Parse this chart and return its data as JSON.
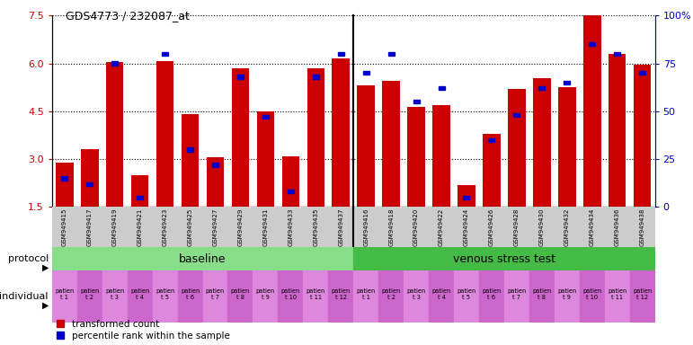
{
  "title": "GDS4773 / 232087_at",
  "gsm_labels": [
    "GSM949415",
    "GSM949417",
    "GSM949419",
    "GSM949421",
    "GSM949423",
    "GSM949425",
    "GSM949427",
    "GSM949429",
    "GSM949431",
    "GSM949433",
    "GSM949435",
    "GSM949437",
    "GSM949416",
    "GSM949418",
    "GSM949420",
    "GSM949422",
    "GSM949424",
    "GSM949426",
    "GSM949428",
    "GSM949430",
    "GSM949432",
    "GSM949434",
    "GSM949436",
    "GSM949438"
  ],
  "red_values": [
    2.9,
    3.3,
    6.05,
    2.5,
    6.08,
    4.4,
    3.05,
    5.85,
    4.5,
    3.1,
    5.85,
    6.15,
    5.3,
    5.45,
    4.65,
    4.7,
    2.2,
    3.8,
    5.2,
    5.55,
    5.25,
    7.5,
    6.3,
    5.95
  ],
  "blue_pct": [
    15,
    12,
    75,
    5,
    80,
    30,
    22,
    68,
    47,
    8,
    68,
    80,
    70,
    80,
    55,
    62,
    5,
    35,
    48,
    62,
    65,
    85,
    80,
    70
  ],
  "ymin": 1.5,
  "ymax": 7.5,
  "yticks_red": [
    1.5,
    3.0,
    4.5,
    6.0,
    7.5
  ],
  "yticks_blue": [
    0,
    25,
    50,
    75,
    100
  ],
  "n_baseline": 12,
  "n_venous": 12,
  "baseline_label": "baseline",
  "venous_label": "venous stress test",
  "protocol_label": "protocol",
  "individual_label": "individual",
  "individual_labels": [
    "patien\nt 1",
    "patien\nt 2",
    "patien\nt 3",
    "patien\nt 4",
    "patien\nt 5",
    "patien\nt 6",
    "patien\nt 7",
    "patien\nt 8",
    "patien\nt 9",
    "patien\nt 10",
    "patien\nt 11",
    "patien\nt 12",
    "patien\nt 1",
    "patien\nt 2",
    "patien\nt 3",
    "patien\nt 4",
    "patien\nt 5",
    "patien\nt 6",
    "patien\nt 7",
    "patien\nt 8",
    "patien\nt 9",
    "patien\nt 10",
    "patien\nt 11",
    "patien\nt 12"
  ],
  "bar_color": "#cc0000",
  "blue_color": "#0000cc",
  "baseline_bg": "#88dd88",
  "venous_bg": "#44bb44",
  "ind_bg_light": "#dd88dd",
  "ind_bg_dark": "#cc66cc",
  "gsm_bg": "#cccccc",
  "legend_red_label": "transformed count",
  "legend_blue_label": "percentile rank within the sample",
  "figsize": [
    7.71,
    3.84
  ],
  "dpi": 100
}
